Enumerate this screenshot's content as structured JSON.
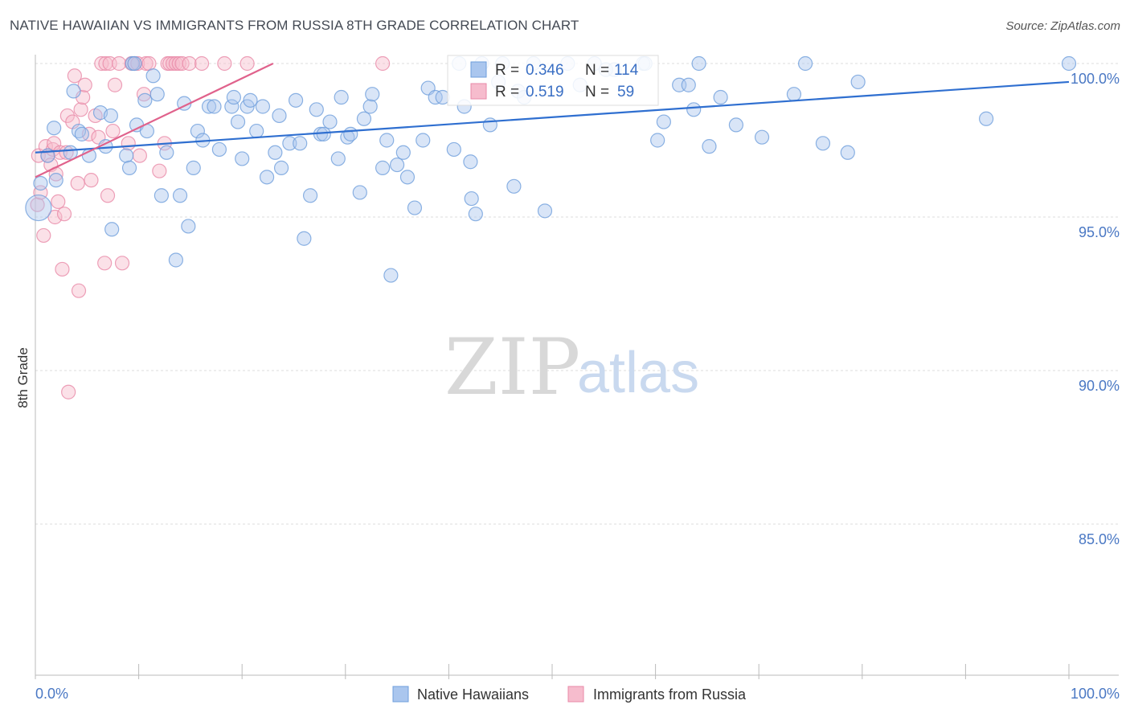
{
  "header": {
    "title": "NATIVE HAWAIIAN VS IMMIGRANTS FROM RUSSIA 8TH GRADE CORRELATION CHART",
    "source": "Source: ZipAtlas.com"
  },
  "watermark": {
    "zip": "ZIP",
    "atlas": "atlas"
  },
  "colors": {
    "blue": "#6f9fdc",
    "blue_fill": "#aac6ee",
    "blue_line": "#2f6fd0",
    "pink": "#e88aa8",
    "pink_fill": "#f6bccd",
    "pink_line": "#e0628c",
    "tick_text": "#4a78c4",
    "grid": "#dddddd"
  },
  "stats": {
    "blue": {
      "r_label": "R =",
      "r_value": "0.346",
      "n_label": "N =",
      "n_value": "114"
    },
    "pink": {
      "r_label": "R =",
      "r_value": "0.519",
      "n_label": "N =",
      "n_value": "59"
    }
  },
  "chart_data": {
    "type": "scatter",
    "title": "NATIVE HAWAIIAN VS IMMIGRANTS FROM RUSSIA 8TH GRADE CORRELATION CHART",
    "xlabel": "",
    "ylabel": "8th Grade",
    "xlim": [
      0,
      100
    ],
    "ylim": [
      80.5,
      100.8
    ],
    "x_tick_labels": [
      "0.0%",
      "100.0%"
    ],
    "y_ticks": [
      85,
      90,
      95,
      100
    ],
    "y_tick_labels": [
      "85.0%",
      "90.0%",
      "95.0%",
      "100.0%"
    ],
    "legend": [
      "Native Hawaiians",
      "Immigrants from Russia"
    ],
    "series": [
      {
        "name": "Native Hawaiians",
        "trend": {
          "x": [
            0,
            100
          ],
          "y": [
            97.1,
            99.4
          ]
        },
        "points": [
          [
            0.3,
            95.3
          ],
          [
            0.5,
            96.1
          ],
          [
            1.2,
            97.0
          ],
          [
            1.8,
            97.9
          ],
          [
            2.0,
            96.2
          ],
          [
            3.4,
            97.1
          ],
          [
            3.7,
            99.1
          ],
          [
            4.2,
            97.8
          ],
          [
            4.5,
            97.7
          ],
          [
            5.2,
            97.0
          ],
          [
            6.3,
            98.4
          ],
          [
            6.8,
            97.3
          ],
          [
            7.3,
            98.3
          ],
          [
            7.4,
            94.6
          ],
          [
            8.8,
            97.0
          ],
          [
            9.1,
            96.6
          ],
          [
            9.4,
            100.0
          ],
          [
            9.6,
            100.0
          ],
          [
            9.8,
            98.0
          ],
          [
            10.6,
            98.8
          ],
          [
            10.8,
            97.8
          ],
          [
            11.4,
            99.6
          ],
          [
            11.8,
            99.0
          ],
          [
            12.2,
            95.7
          ],
          [
            12.7,
            97.1
          ],
          [
            13.6,
            93.6
          ],
          [
            14.0,
            95.7
          ],
          [
            14.4,
            98.7
          ],
          [
            14.8,
            94.7
          ],
          [
            15.3,
            96.6
          ],
          [
            15.7,
            97.8
          ],
          [
            16.2,
            97.5
          ],
          [
            16.8,
            98.6
          ],
          [
            17.3,
            98.6
          ],
          [
            17.8,
            97.2
          ],
          [
            19.0,
            98.6
          ],
          [
            19.2,
            98.9
          ],
          [
            19.6,
            98.1
          ],
          [
            20.0,
            96.9
          ],
          [
            20.5,
            98.6
          ],
          [
            20.8,
            98.8
          ],
          [
            21.4,
            97.8
          ],
          [
            22.0,
            98.6
          ],
          [
            22.4,
            96.3
          ],
          [
            23.2,
            97.1
          ],
          [
            23.6,
            98.3
          ],
          [
            23.8,
            96.6
          ],
          [
            24.6,
            97.4
          ],
          [
            25.2,
            98.8
          ],
          [
            25.6,
            97.4
          ],
          [
            26.0,
            94.3
          ],
          [
            26.6,
            95.7
          ],
          [
            27.2,
            98.5
          ],
          [
            27.6,
            97.7
          ],
          [
            27.9,
            97.7
          ],
          [
            28.5,
            98.1
          ],
          [
            29.3,
            96.9
          ],
          [
            29.6,
            98.9
          ],
          [
            30.2,
            97.6
          ],
          [
            30.5,
            97.7
          ],
          [
            31.4,
            95.8
          ],
          [
            31.8,
            98.2
          ],
          [
            32.4,
            98.6
          ],
          [
            32.6,
            99.0
          ],
          [
            33.6,
            96.6
          ],
          [
            34.0,
            97.5
          ],
          [
            34.4,
            93.1
          ],
          [
            35.0,
            96.7
          ],
          [
            35.6,
            97.1
          ],
          [
            36.0,
            96.3
          ],
          [
            36.7,
            95.3
          ],
          [
            37.5,
            97.5
          ],
          [
            38.0,
            99.2
          ],
          [
            38.7,
            98.9
          ],
          [
            39.4,
            98.9
          ],
          [
            40.5,
            97.2
          ],
          [
            41.0,
            100.0
          ],
          [
            41.5,
            98.6
          ],
          [
            42.1,
            96.8
          ],
          [
            42.2,
            95.6
          ],
          [
            42.6,
            95.1
          ],
          [
            43.2,
            100.0
          ],
          [
            44.0,
            98.0
          ],
          [
            44.8,
            99.4
          ],
          [
            45.2,
            100.0
          ],
          [
            46.3,
            96.0
          ],
          [
            46.7,
            99.1
          ],
          [
            47.3,
            98.9
          ],
          [
            48.2,
            100.0
          ],
          [
            49.3,
            95.2
          ],
          [
            51.5,
            100.0
          ],
          [
            52.7,
            99.3
          ],
          [
            54.1,
            100.0
          ],
          [
            55.2,
            99.8
          ],
          [
            56.0,
            99.8
          ],
          [
            58.8,
            100.0
          ],
          [
            59.0,
            100.0
          ],
          [
            60.2,
            97.5
          ],
          [
            60.8,
            98.1
          ],
          [
            62.3,
            99.3
          ],
          [
            63.2,
            99.3
          ],
          [
            63.7,
            98.5
          ],
          [
            64.2,
            100.0
          ],
          [
            65.2,
            97.3
          ],
          [
            66.3,
            98.9
          ],
          [
            67.8,
            98.0
          ],
          [
            70.3,
            97.6
          ],
          [
            73.4,
            99.0
          ],
          [
            74.5,
            100.0
          ],
          [
            76.2,
            97.4
          ],
          [
            78.6,
            97.1
          ],
          [
            79.6,
            99.4
          ],
          [
            92.0,
            98.2
          ],
          [
            100.0,
            100.0
          ]
        ]
      },
      {
        "name": "Immigrants from Russia",
        "trend": {
          "x": [
            0,
            23
          ],
          "y": [
            96.3,
            100.0
          ]
        },
        "points": [
          [
            0.2,
            95.4
          ],
          [
            0.3,
            97.0
          ],
          [
            0.5,
            95.8
          ],
          [
            0.8,
            94.4
          ],
          [
            1.0,
            97.3
          ],
          [
            1.2,
            97.0
          ],
          [
            1.5,
            96.7
          ],
          [
            1.7,
            97.2
          ],
          [
            1.8,
            97.4
          ],
          [
            1.9,
            95.0
          ],
          [
            2.0,
            96.4
          ],
          [
            2.2,
            95.5
          ],
          [
            2.4,
            97.1
          ],
          [
            2.6,
            93.3
          ],
          [
            2.8,
            95.1
          ],
          [
            3.0,
            97.1
          ],
          [
            3.1,
            98.3
          ],
          [
            3.2,
            89.3
          ],
          [
            3.6,
            98.1
          ],
          [
            3.8,
            99.6
          ],
          [
            4.1,
            96.1
          ],
          [
            4.2,
            92.6
          ],
          [
            4.4,
            98.5
          ],
          [
            4.6,
            98.9
          ],
          [
            4.8,
            99.3
          ],
          [
            5.2,
            97.7
          ],
          [
            5.4,
            96.2
          ],
          [
            5.8,
            98.3
          ],
          [
            6.1,
            97.6
          ],
          [
            6.4,
            100.0
          ],
          [
            6.7,
            93.5
          ],
          [
            6.8,
            100.0
          ],
          [
            7.0,
            95.7
          ],
          [
            7.2,
            100.0
          ],
          [
            7.5,
            97.8
          ],
          [
            7.7,
            99.3
          ],
          [
            8.1,
            100.0
          ],
          [
            8.4,
            93.5
          ],
          [
            9.0,
            97.4
          ],
          [
            9.3,
            100.0
          ],
          [
            9.6,
            100.0
          ],
          [
            9.9,
            100.0
          ],
          [
            10.1,
            97.0
          ],
          [
            10.5,
            99.0
          ],
          [
            10.7,
            100.0
          ],
          [
            11.0,
            100.0
          ],
          [
            12.0,
            96.5
          ],
          [
            12.5,
            97.4
          ],
          [
            12.8,
            100.0
          ],
          [
            13.0,
            100.0
          ],
          [
            13.3,
            100.0
          ],
          [
            13.6,
            100.0
          ],
          [
            13.9,
            100.0
          ],
          [
            14.2,
            100.0
          ],
          [
            14.9,
            100.0
          ],
          [
            16.1,
            100.0
          ],
          [
            18.3,
            100.0
          ],
          [
            20.5,
            100.0
          ],
          [
            33.6,
            100.0
          ]
        ]
      }
    ]
  },
  "legend_items": [
    {
      "label": "Native Hawaiians"
    },
    {
      "label": "Immigrants from Russia"
    }
  ]
}
